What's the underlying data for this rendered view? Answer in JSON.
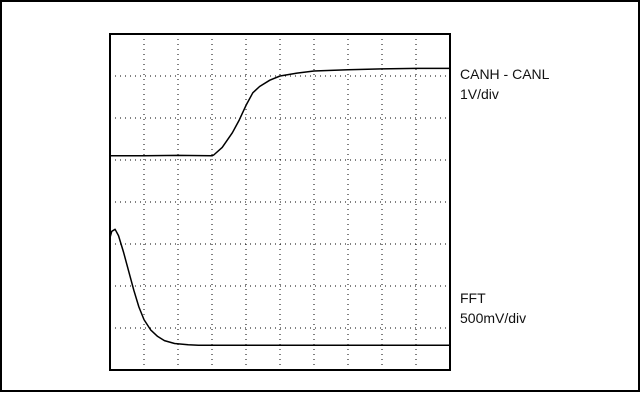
{
  "chart_data": {
    "type": "line",
    "title": "",
    "xlabel": "",
    "ylabel": "",
    "grid": true,
    "grid_divisions": {
      "x": 10,
      "y": 8
    },
    "units": {
      "x": "div",
      "y": "div"
    },
    "xlim": [
      0,
      10
    ],
    "ylim": [
      0,
      8
    ],
    "series": [
      {
        "name": "CANH - CANL",
        "scale": "1V/div",
        "points": [
          [
            0,
            5.1
          ],
          [
            1,
            5.1
          ],
          [
            2,
            5.11
          ],
          [
            3,
            5.1
          ],
          [
            3.05,
            5.12
          ],
          [
            3.3,
            5.3
          ],
          [
            3.6,
            5.65
          ],
          [
            3.8,
            5.95
          ],
          [
            4.0,
            6.3
          ],
          [
            4.2,
            6.6
          ],
          [
            4.4,
            6.75
          ],
          [
            4.7,
            6.9
          ],
          [
            5.0,
            7.0
          ],
          [
            5.5,
            7.07
          ],
          [
            6.0,
            7.12
          ],
          [
            7.0,
            7.15
          ],
          [
            8.0,
            7.17
          ],
          [
            9.0,
            7.18
          ],
          [
            10,
            7.18
          ]
        ]
      },
      {
        "name": "FFT",
        "scale": "500mV/div",
        "points": [
          [
            0,
            3.15
          ],
          [
            0.05,
            3.3
          ],
          [
            0.15,
            3.35
          ],
          [
            0.25,
            3.2
          ],
          [
            0.4,
            2.8
          ],
          [
            0.55,
            2.35
          ],
          [
            0.7,
            1.9
          ],
          [
            0.85,
            1.5
          ],
          [
            1.0,
            1.2
          ],
          [
            1.2,
            0.95
          ],
          [
            1.4,
            0.8
          ],
          [
            1.6,
            0.7
          ],
          [
            1.9,
            0.63
          ],
          [
            2.3,
            0.6
          ],
          [
            2.6,
            0.59
          ],
          [
            10,
            0.59
          ]
        ]
      }
    ]
  }
}
